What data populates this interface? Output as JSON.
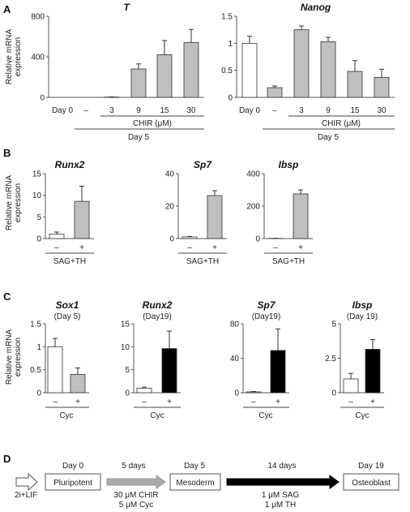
{
  "panel_labels": {
    "a": "A",
    "b": "B",
    "c": "C",
    "d": "D"
  },
  "ylabel_lines": [
    "Relative mRNA",
    "expression"
  ],
  "panel_a": {
    "day0_label": "Day 0",
    "cat_labels": [
      "–",
      "3",
      "9",
      "15",
      "30"
    ],
    "group_label": "CHIR (μM)",
    "day_label": "Day 5"
  },
  "panel_b": {
    "cat_labels": [
      "–",
      "+"
    ],
    "group_label": "SAG+TH"
  },
  "panel_c": {
    "cat_labels": [
      "–",
      "+"
    ],
    "group_label": "Cyc"
  },
  "diagram": {
    "start": "2i+LIF",
    "stages": [
      {
        "day": "Day 0",
        "name": "Pluripotent"
      },
      {
        "day": "Day 5",
        "name": "Mesoderm"
      },
      {
        "day": "Day 19",
        "name": "Osteoblast"
      }
    ],
    "steps": [
      {
        "duration": "5 days",
        "cond1": "30 μM CHIR",
        "cond2": "5 μM Cyc",
        "color": "#aaaaaa"
      },
      {
        "duration": "14 days",
        "cond1": "1 μM SAG",
        "cond2": "1 μM TH",
        "color": "#000000"
      }
    ]
  },
  "chart_data": [
    {
      "panel": "A",
      "type": "bar",
      "title": "T",
      "subtitle": "",
      "categories": [
        "Day 0",
        "–",
        "3",
        "9",
        "15",
        "30"
      ],
      "values": [
        0,
        0,
        3,
        280,
        420,
        540
      ],
      "errors": [
        0,
        0,
        2,
        50,
        140,
        130
      ],
      "fills": [
        "#ffffff",
        "#bfbfbf",
        "#bfbfbf",
        "#bfbfbf",
        "#bfbfbf",
        "#bfbfbf"
      ],
      "ylim": [
        0,
        800
      ],
      "yticks": [
        "0",
        "400",
        "800"
      ],
      "ylabel": "Relative mRNA expression"
    },
    {
      "panel": "A",
      "type": "bar",
      "title": "Nanog",
      "subtitle": "",
      "categories": [
        "Day 0",
        "–",
        "3",
        "9",
        "15",
        "30"
      ],
      "values": [
        1.0,
        0.18,
        1.25,
        1.03,
        0.48,
        0.37
      ],
      "errors": [
        0.13,
        0.03,
        0.07,
        0.08,
        0.2,
        0.15
      ],
      "fills": [
        "#ffffff",
        "#bfbfbf",
        "#bfbfbf",
        "#bfbfbf",
        "#bfbfbf",
        "#bfbfbf"
      ],
      "ylim": [
        0,
        1.5
      ],
      "yticks": [
        "0",
        "0.5",
        "1",
        "1.5"
      ]
    },
    {
      "panel": "B",
      "type": "bar",
      "title": "Runx2",
      "subtitle": "",
      "categories": [
        "–",
        "+"
      ],
      "values": [
        1.0,
        8.6
      ],
      "errors": [
        0.5,
        3.5
      ],
      "fills": [
        "#ffffff",
        "#bfbfbf"
      ],
      "ylim": [
        0,
        15
      ],
      "yticks": [
        "0",
        "5",
        "10",
        "15"
      ],
      "ylabel": "Relative mRNA expression"
    },
    {
      "panel": "B",
      "type": "bar",
      "title": "Sp7",
      "subtitle": "",
      "categories": [
        "–",
        "+"
      ],
      "values": [
        1.0,
        26.5
      ],
      "errors": [
        0.3,
        3.0
      ],
      "fills": [
        "#ffffff",
        "#bfbfbf"
      ],
      "ylim": [
        0,
        40
      ],
      "yticks": [
        "0",
        "20",
        "40"
      ]
    },
    {
      "panel": "B",
      "type": "bar",
      "title": "Ibsp",
      "subtitle": "",
      "categories": [
        "–",
        "+"
      ],
      "values": [
        1.0,
        275
      ],
      "errors": [
        1,
        25
      ],
      "fills": [
        "#ffffff",
        "#bfbfbf"
      ],
      "ylim": [
        0,
        400
      ],
      "yticks": [
        "0",
        "200",
        "400"
      ]
    },
    {
      "panel": "C",
      "type": "bar",
      "title": "Sox1",
      "subtitle": "(Day 5)",
      "categories": [
        "–",
        "+"
      ],
      "values": [
        1.0,
        0.4
      ],
      "errors": [
        0.18,
        0.14
      ],
      "fills": [
        "#ffffff",
        "#bfbfbf"
      ],
      "ylim": [
        0,
        1.5
      ],
      "yticks": [
        "0",
        "0.5",
        "1",
        "1.5"
      ],
      "ylabel": "Relative mRNA expression"
    },
    {
      "panel": "C",
      "type": "bar",
      "title": "Runx2",
      "subtitle": "(Day19)",
      "categories": [
        "–",
        "+"
      ],
      "values": [
        1.0,
        9.6
      ],
      "errors": [
        0.2,
        3.8
      ],
      "fills": [
        "#ffffff",
        "#000000"
      ],
      "ylim": [
        0,
        15
      ],
      "yticks": [
        "0",
        "5",
        "10",
        "15"
      ]
    },
    {
      "panel": "C",
      "type": "bar",
      "title": "Sp7",
      "subtitle": "(Day19)",
      "categories": [
        "–",
        "+"
      ],
      "values": [
        1.0,
        49
      ],
      "errors": [
        0.4,
        25
      ],
      "fills": [
        "#ffffff",
        "#000000"
      ],
      "ylim": [
        0,
        80
      ],
      "yticks": [
        "0",
        "40",
        "80"
      ]
    },
    {
      "panel": "C",
      "type": "bar",
      "title": "Ibsp",
      "subtitle": "(Day 19)",
      "categories": [
        "–",
        "+"
      ],
      "values": [
        1.0,
        3.15
      ],
      "errors": [
        0.4,
        0.7
      ],
      "fills": [
        "#ffffff",
        "#000000"
      ],
      "ylim": [
        0,
        5
      ],
      "yticks": [
        "0",
        "2.5",
        "5"
      ]
    }
  ]
}
